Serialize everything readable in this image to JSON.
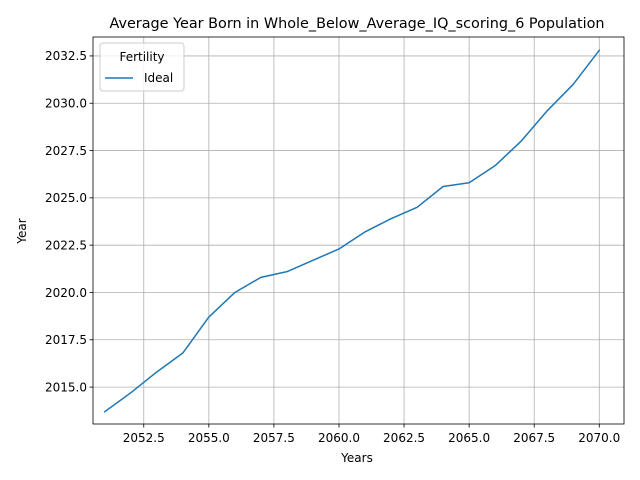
{
  "chart_data": {
    "type": "line",
    "title": "Average Year Born in Whole_Below_Average_IQ_scoring_6 Population",
    "xlabel": "Years",
    "ylabel": "Year",
    "xlim": [
      2050.55,
      2070.95
    ],
    "ylim": [
      2013.05,
      2033.5
    ],
    "xticks": [
      "2052.5",
      "2055.0",
      "2057.5",
      "2060.0",
      "2062.5",
      "2065.0",
      "2067.5",
      "2070.0"
    ],
    "yticks": [
      "2015.0",
      "2017.5",
      "2020.0",
      "2022.5",
      "2025.0",
      "2027.5",
      "2030.0",
      "2032.5"
    ],
    "grid": true,
    "legend": {
      "title": "Fertility",
      "placement": "top-left"
    },
    "series": [
      {
        "name": "Ideal",
        "color": "#1f77b4",
        "x": [
          2051,
          2052,
          2053,
          2054,
          2055,
          2056,
          2057,
          2058,
          2059,
          2060,
          2061,
          2062,
          2063,
          2064,
          2065,
          2066,
          2067,
          2068,
          2069,
          2070
        ],
        "y": [
          2013.7,
          2014.7,
          2015.8,
          2016.8,
          2018.7,
          2020.0,
          2020.8,
          2021.1,
          2021.7,
          2022.3,
          2023.2,
          2023.9,
          2024.5,
          2025.6,
          2025.8,
          2026.7,
          2028.0,
          2029.6,
          2031.0,
          2032.8
        ]
      }
    ]
  }
}
